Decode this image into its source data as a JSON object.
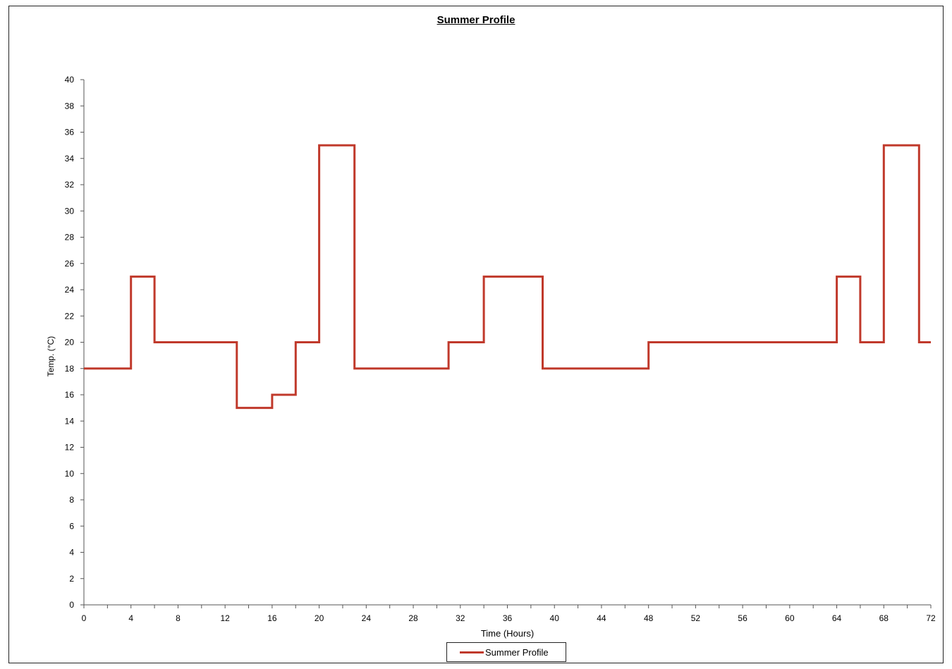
{
  "chart_data": {
    "type": "line",
    "title": "Summer Profile",
    "xlabel": "Time (Hours)",
    "ylabel": "Temp. (°C)",
    "xlim": [
      0,
      72
    ],
    "ylim": [
      0,
      40
    ],
    "x_ticks": [
      0,
      4,
      8,
      12,
      16,
      20,
      24,
      28,
      32,
      36,
      40,
      44,
      48,
      52,
      56,
      60,
      64,
      68,
      72
    ],
    "y_ticks": [
      0,
      2,
      4,
      6,
      8,
      10,
      12,
      14,
      16,
      18,
      20,
      22,
      24,
      26,
      28,
      30,
      32,
      34,
      36,
      38,
      40
    ],
    "grid": false,
    "legend_position": "bottom-center",
    "series": [
      {
        "name": "Summer Profile",
        "color": "#c0392b",
        "points": [
          [
            0,
            18
          ],
          [
            4,
            18
          ],
          [
            4,
            25
          ],
          [
            6,
            25
          ],
          [
            6,
            20
          ],
          [
            13,
            20
          ],
          [
            13,
            15
          ],
          [
            16,
            15
          ],
          [
            16,
            16
          ],
          [
            18,
            16
          ],
          [
            18,
            20
          ],
          [
            20,
            20
          ],
          [
            20,
            35
          ],
          [
            23,
            35
          ],
          [
            23,
            18
          ],
          [
            31,
            18
          ],
          [
            31,
            20
          ],
          [
            34,
            20
          ],
          [
            34,
            25
          ],
          [
            39,
            25
          ],
          [
            39,
            18
          ],
          [
            48,
            18
          ],
          [
            48,
            20
          ],
          [
            64,
            20
          ],
          [
            64,
            25
          ],
          [
            66,
            25
          ],
          [
            66,
            20
          ],
          [
            68,
            20
          ],
          [
            68,
            35
          ],
          [
            71,
            35
          ],
          [
            71,
            20
          ],
          [
            72,
            20
          ]
        ]
      }
    ]
  }
}
